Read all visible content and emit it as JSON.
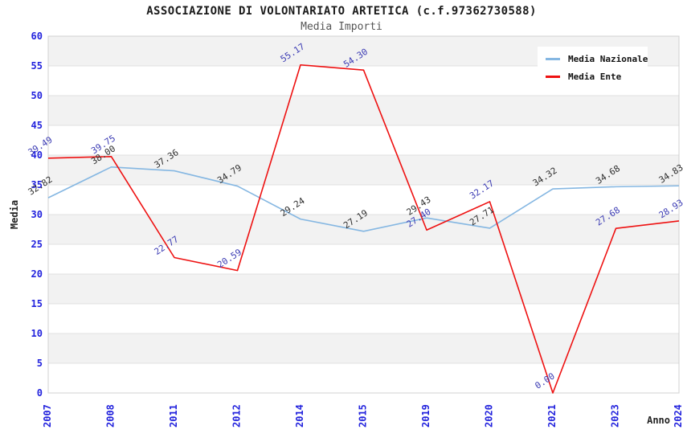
{
  "chart_data": {
    "type": "line",
    "title": "ASSOCIAZIONE DI VOLONTARIATO ARTETICA (c.f.97362730588)",
    "subtitle": "Media Importi",
    "categories": [
      "2007",
      "2008",
      "2011",
      "2012",
      "2014",
      "2015",
      "2019",
      "2020",
      "2021",
      "2023",
      "2024"
    ],
    "series": [
      {
        "name": "Media Nazionale",
        "color": "#85b7e2",
        "label_color": "#2e2e2e",
        "values": [
          32.82,
          38.0,
          37.36,
          34.79,
          29.24,
          27.19,
          29.43,
          27.71,
          34.32,
          34.68,
          34.83
        ]
      },
      {
        "name": "Media Ente",
        "color": "#ee1111",
        "label_color": "#3c3cb4",
        "values": [
          39.49,
          39.75,
          22.77,
          20.59,
          55.17,
          54.3,
          27.4,
          32.17,
          0.0,
          27.68,
          28.93
        ]
      }
    ],
    "xlabel": "Anno",
    "ylabel": "Media",
    "ylim": [
      0,
      60
    ],
    "y_tick_step": 5,
    "legend_position": "top-right",
    "grid": "horizontal-bands",
    "style": {
      "tick_color": "#2222dd",
      "axis_title_color": "#222222",
      "band_color": "#f2f2f2",
      "grid_color": "#e0e0e0",
      "border_color": "#d0d0d0",
      "title_color": "#1a1a1a",
      "subtitle_color": "#555555"
    }
  }
}
